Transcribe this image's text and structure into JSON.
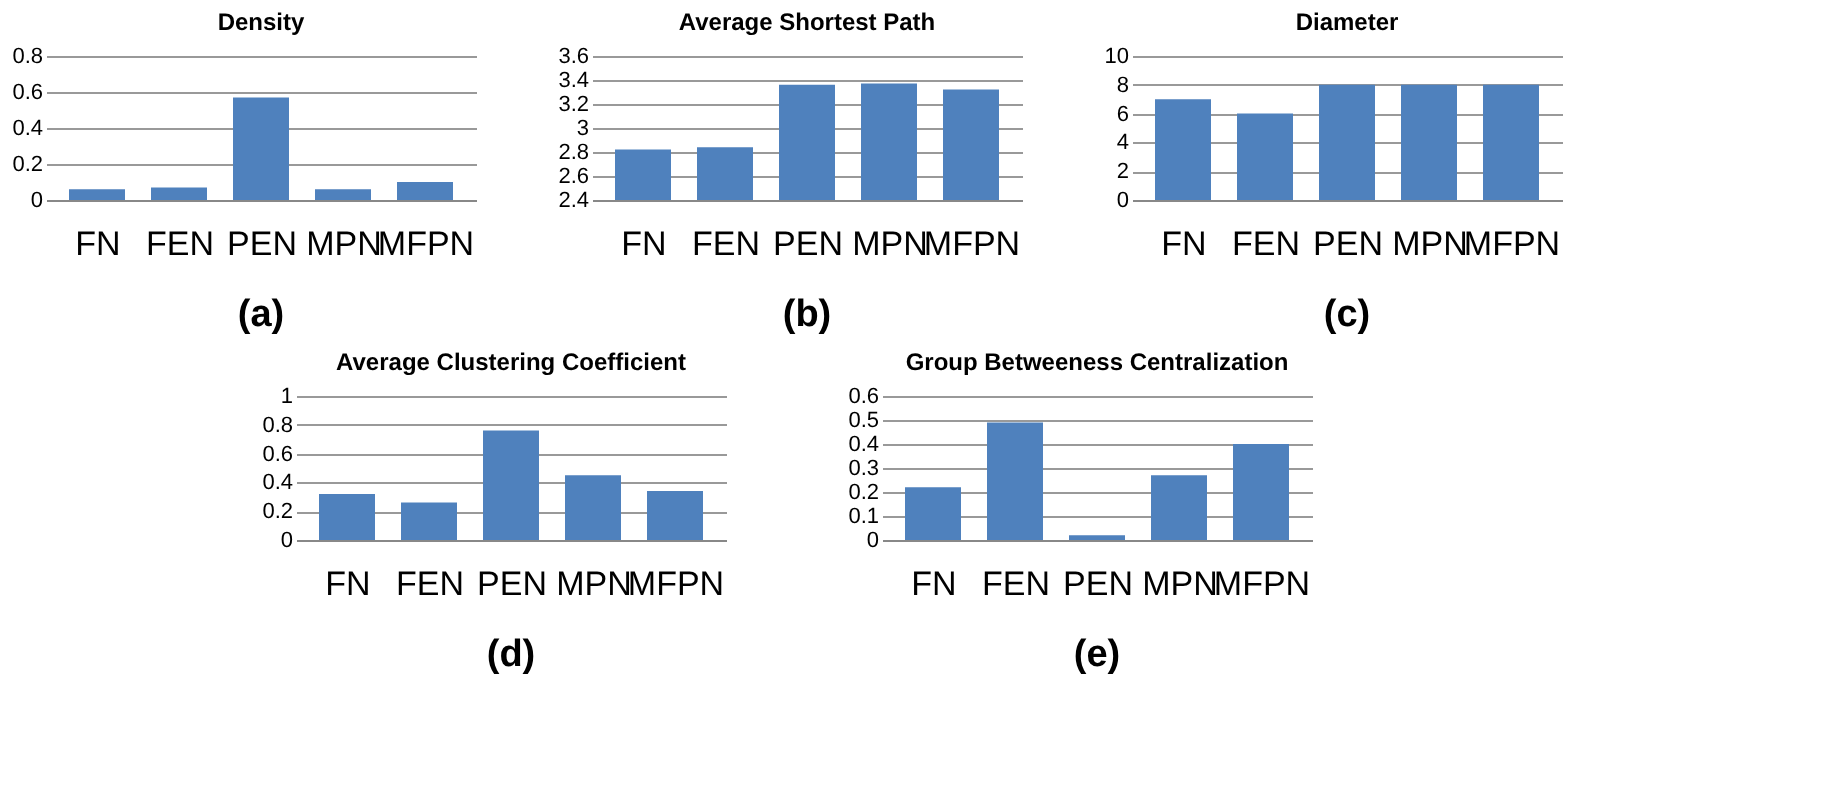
{
  "chart_data": [
    {
      "type": "bar",
      "title": "Density",
      "categories": [
        "FN",
        "FEN",
        "PEN",
        "MPN",
        "MFPN"
      ],
      "values": [
        0.06,
        0.07,
        0.57,
        0.06,
        0.1
      ],
      "color": "#4f81bd",
      "ylim": [
        0,
        0.8
      ],
      "yticks": [
        0,
        0.2,
        0.4,
        0.6,
        0.8
      ],
      "grid": "y",
      "annotations": [
        "(a)"
      ]
    },
    {
      "type": "bar",
      "title": "Average Shortest Path",
      "categories": [
        "FN",
        "FEN",
        "PEN",
        "MPN",
        "MFPN"
      ],
      "values": [
        2.82,
        2.84,
        3.36,
        3.37,
        3.32
      ],
      "color": "#4f81bd",
      "ylim": [
        2.4,
        3.6
      ],
      "yticks": [
        2.4,
        2.6,
        2.8,
        3,
        3.2,
        3.4,
        3.6
      ],
      "grid": "y",
      "annotations": [
        "(b)"
      ]
    },
    {
      "type": "bar",
      "title": "Diameter",
      "categories": [
        "FN",
        "FEN",
        "PEN",
        "MPN",
        "MFPN"
      ],
      "values": [
        7,
        6,
        8,
        8,
        8
      ],
      "color": "#4f81bd",
      "ylim": [
        0,
        10
      ],
      "yticks": [
        0,
        2,
        4,
        6,
        8,
        10
      ],
      "grid": "y",
      "annotations": [
        "(c)"
      ]
    },
    {
      "type": "bar",
      "title": "Average Clustering Coefficient",
      "categories": [
        "FN",
        "FEN",
        "PEN",
        "MPN",
        "MFPN"
      ],
      "values": [
        0.32,
        0.26,
        0.76,
        0.45,
        0.34
      ],
      "color": "#4f81bd",
      "ylim": [
        0,
        1
      ],
      "yticks": [
        0,
        0.2,
        0.4,
        0.6,
        0.8,
        1
      ],
      "grid": "y",
      "annotations": [
        "(d)"
      ]
    },
    {
      "type": "bar",
      "title": "Group Betweeness Centralization",
      "categories": [
        "FN",
        "FEN",
        "PEN",
        "MPN",
        "MFPN"
      ],
      "values": [
        0.22,
        0.49,
        0.02,
        0.27,
        0.4
      ],
      "color": "#4f81bd",
      "ylim": [
        0,
        0.6
      ],
      "yticks": [
        0,
        0.1,
        0.2,
        0.3,
        0.4,
        0.5,
        0.6
      ],
      "grid": "y",
      "annotations": [
        "(e)"
      ]
    }
  ]
}
